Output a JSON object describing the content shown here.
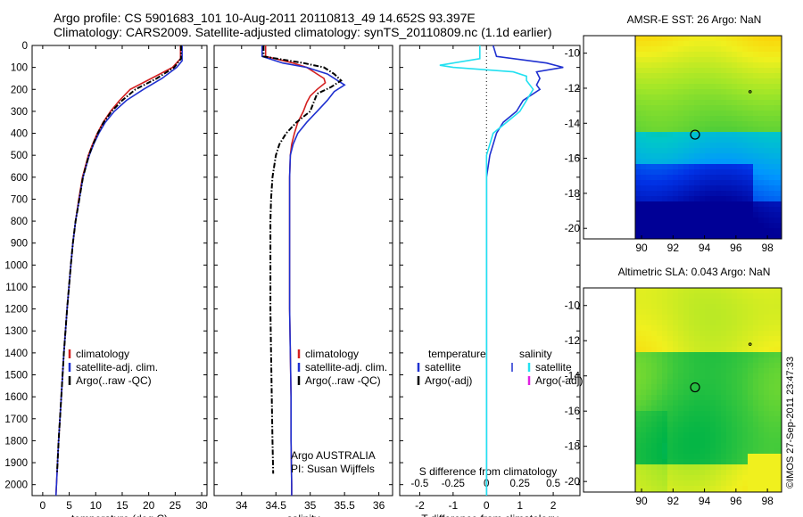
{
  "header": {
    "title_line1": "Argo profile: CS 5901683_101 10-Aug-2011 20110813_49 14.652S 93.397E",
    "title_line2": "Climatology: CARS2009. Satellite-adjusted climatology: synTS_20110809.nc (1.1d earlier)"
  },
  "credit": "©IMOS 27-Sep-2011 23:47:33",
  "colors": {
    "climatology": "#d42020",
    "satellite": "#1f30d0",
    "argo": "#000000",
    "sat_s": "#22e0f0",
    "argo_s": "#e020e0"
  },
  "chart_data": [
    {
      "type": "line",
      "xlabel": "temperature (deg C)",
      "ylabel": "",
      "xlim": [
        -2,
        31
      ],
      "ylim": [
        2050,
        0
      ],
      "xticks": [
        0,
        5,
        10,
        15,
        20,
        25,
        30
      ],
      "yticks": [
        0,
        100,
        200,
        300,
        400,
        500,
        600,
        700,
        800,
        900,
        1000,
        1100,
        1200,
        1300,
        1400,
        1500,
        1600,
        1700,
        1800,
        1900,
        2000
      ],
      "legend": [
        "climatology",
        "satellite-adj. clim.",
        "Argo(..raw -QC)"
      ],
      "legend_placement": "bottom-center",
      "series": [
        {
          "name": "climatology",
          "depth": [
            0,
            60,
            100,
            150,
            200,
            250,
            300,
            350,
            400,
            450,
            500,
            600,
            700,
            800,
            900,
            1000,
            1200,
            1400,
            1600,
            1800,
            2000,
            2050
          ],
          "values": [
            26.0,
            26.0,
            24.5,
            20.5,
            16.5,
            14.5,
            12.8,
            11.4,
            10.3,
            9.4,
            8.6,
            7.5,
            6.8,
            6.2,
            5.7,
            5.3,
            4.6,
            4.0,
            3.5,
            3.0,
            2.6,
            2.5
          ]
        },
        {
          "name": "satellite-adj. clim.",
          "depth": [
            0,
            70,
            100,
            150,
            200,
            250,
            300,
            350,
            400,
            450,
            500,
            600,
            700,
            800,
            900,
            1000,
            1200,
            1400,
            1600,
            1800,
            2000,
            2050
          ],
          "values": [
            26.3,
            26.3,
            25.3,
            22.5,
            19.0,
            15.8,
            13.5,
            11.8,
            10.6,
            9.6,
            8.8,
            7.6,
            6.9,
            6.2,
            5.7,
            5.3,
            4.6,
            4.0,
            3.5,
            3.0,
            2.6,
            2.5
          ]
        },
        {
          "name": "Argo(..raw -QC)",
          "depth": [
            0,
            60,
            100,
            150,
            200,
            250,
            300,
            350,
            400,
            450,
            500,
            600,
            700,
            800,
            900,
            1000,
            1200,
            1400,
            1600,
            1800,
            1950
          ],
          "values": [
            26.1,
            26.1,
            24.8,
            21.5,
            17.5,
            15.0,
            13.0,
            11.5,
            10.4,
            9.5,
            8.7,
            7.6,
            6.9,
            6.2,
            5.7,
            5.3,
            4.6,
            4.0,
            3.5,
            3.0,
            2.7
          ]
        }
      ]
    },
    {
      "type": "line",
      "xlabel": "salinity",
      "xlim": [
        33.6,
        36.2
      ],
      "ylim": [
        2050,
        0
      ],
      "xticks": [
        34,
        34.5,
        35,
        35.5,
        36
      ],
      "legend": [
        "climatology",
        "satellite-adj. clim.",
        "Argo(..raw -QC)"
      ],
      "legend_placement": "bottom-right",
      "annotation": [
        "Argo AUSTRALIA",
        "PI: Susan Wijffels"
      ],
      "series": [
        {
          "name": "climatology",
          "depth": [
            0,
            50,
            80,
            100,
            150,
            170,
            200,
            230,
            260,
            300,
            350,
            400,
            450,
            500,
            600,
            800,
            1000,
            1200,
            1400,
            1600,
            1800,
            2000,
            2050
          ],
          "values": [
            34.35,
            34.35,
            34.75,
            34.95,
            35.2,
            35.22,
            35.1,
            35.0,
            34.95,
            34.9,
            34.82,
            34.77,
            34.73,
            34.71,
            34.7,
            34.7,
            34.7,
            34.7,
            34.71,
            34.72,
            34.72,
            34.73,
            34.73
          ]
        },
        {
          "name": "satellite-adj. clim.",
          "depth": [
            0,
            50,
            80,
            100,
            130,
            160,
            180,
            210,
            250,
            300,
            350,
            400,
            450,
            500,
            600,
            800,
            1000,
            1200,
            1400,
            1600,
            1800,
            2000,
            2050
          ],
          "values": [
            34.3,
            34.3,
            34.6,
            34.95,
            35.25,
            35.4,
            35.5,
            35.35,
            35.25,
            35.1,
            34.95,
            34.82,
            34.75,
            34.71,
            34.7,
            34.7,
            34.7,
            34.7,
            34.71,
            34.72,
            34.72,
            34.73,
            34.73
          ]
        },
        {
          "name": "Argo(..raw -QC)",
          "depth": [
            0,
            50,
            80,
            100,
            130,
            160,
            190,
            220,
            260,
            300,
            350,
            400,
            450,
            500,
            600,
            700,
            800,
            1000,
            1200,
            1400,
            1600,
            1800,
            1950
          ],
          "values": [
            34.32,
            34.32,
            34.9,
            35.2,
            35.35,
            35.45,
            35.3,
            35.1,
            35.05,
            35.0,
            34.8,
            34.65,
            34.55,
            34.5,
            34.45,
            34.43,
            34.42,
            34.42,
            34.42,
            34.43,
            34.44,
            34.45,
            34.46
          ]
        }
      ]
    },
    {
      "type": "line",
      "xlabel": "T difference from climatology",
      "xlabel_top": "S difference from climatology",
      "xlim": [
        -2.6,
        2.8
      ],
      "ylim": [
        2050,
        0
      ],
      "xticks": [
        -2,
        -1,
        0,
        1,
        2
      ],
      "xticks_top": [
        -0.5,
        -0.25,
        0,
        0.25,
        0.5
      ],
      "legend_groups": [
        "temperature",
        "salinity"
      ],
      "legend": [
        "satellite",
        "Argo(-adj)",
        "satellite",
        "Argo(-adj)"
      ],
      "legend_placement": "bottom",
      "series": [
        {
          "name": "satellite",
          "group": "temperature",
          "depth": [
            0,
            50,
            80,
            100,
            120,
            150,
            180,
            200,
            250,
            300,
            350,
            400,
            500,
            600,
            800,
            1000,
            1200,
            1400,
            1600,
            1800,
            2000,
            2050
          ],
          "values": [
            0.2,
            0.3,
            1.8,
            2.3,
            1.5,
            1.6,
            1.5,
            1.6,
            1.1,
            0.9,
            0.5,
            0.3,
            0.1,
            0.0,
            0.0,
            0.0,
            0.0,
            0.0,
            0.0,
            0.0,
            0.0,
            0.0
          ]
        },
        {
          "name": "satellite",
          "group": "salinity",
          "depth": [
            0,
            60,
            90,
            100,
            120,
            140,
            160,
            200,
            250,
            300,
            350,
            400,
            500,
            600,
            800,
            1000,
            1200,
            1400,
            1600,
            1800,
            2000,
            2050
          ],
          "values": [
            -0.05,
            -0.05,
            -0.35,
            -0.25,
            0.2,
            0.3,
            0.3,
            0.35,
            0.3,
            0.25,
            0.15,
            0.05,
            0.0,
            0.0,
            0.0,
            0.0,
            0.0,
            0.0,
            0.0,
            0.0,
            0.0,
            0.0
          ]
        }
      ]
    }
  ],
  "maps": [
    {
      "title": "AMSR-E SST: 26 Argo: NaN",
      "xticks": [
        90,
        92,
        94,
        96,
        98
      ],
      "yticks": [
        -10,
        -12,
        -14,
        -16,
        -18,
        -20
      ],
      "xlim": [
        89.6,
        98.9
      ],
      "ylim": [
        -9,
        -20.6
      ],
      "marker": [
        93.4,
        -14.65
      ]
    },
    {
      "title": "Altimetric SLA: 0.043 Argo: NaN",
      "xticks": [
        90,
        92,
        94,
        96,
        98
      ],
      "yticks": [
        -10,
        -12,
        -14,
        -16,
        -18,
        -20
      ],
      "xlim": [
        89.6,
        98.9
      ],
      "ylim": [
        -9,
        -20.6
      ],
      "marker": [
        93.4,
        -14.65
      ]
    }
  ]
}
